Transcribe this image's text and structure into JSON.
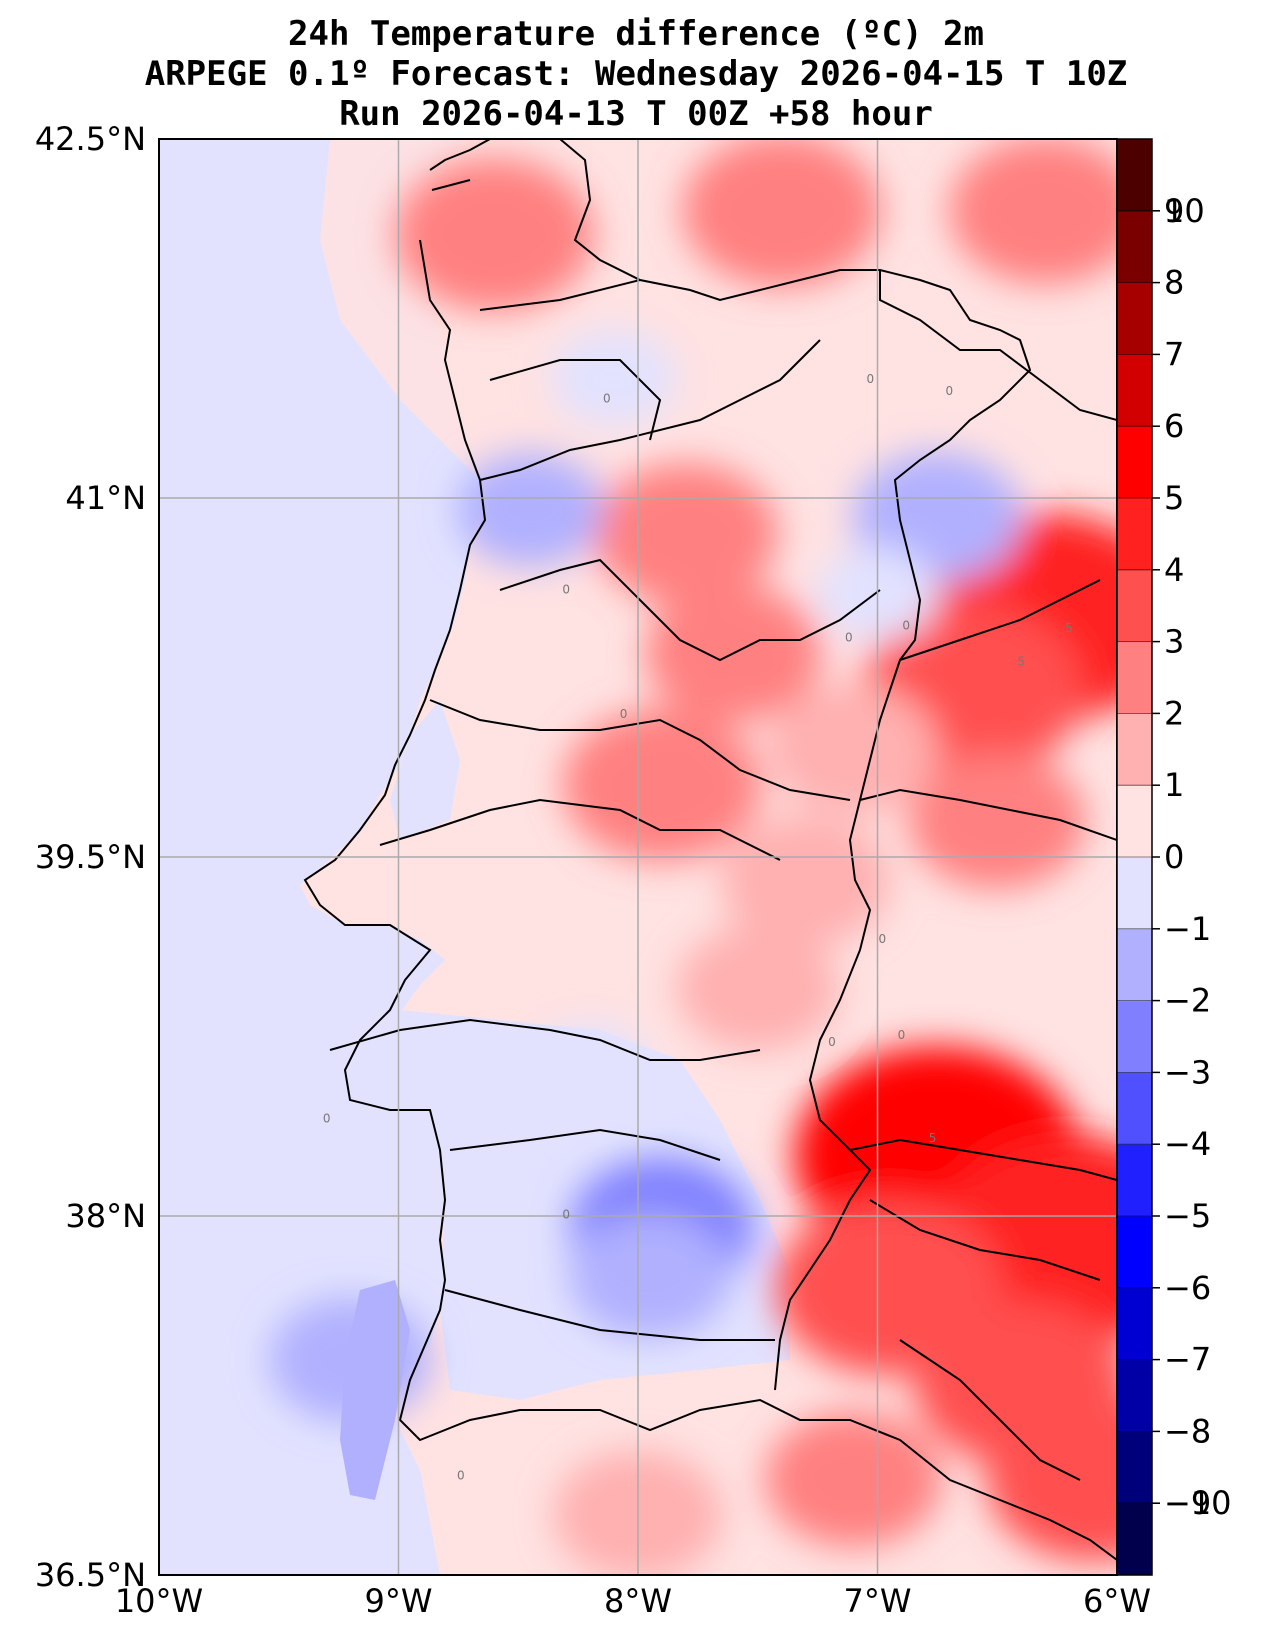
{
  "title": {
    "line1": "24h Temperature difference (ºC) 2m",
    "line2": "ARPEGE 0.1º Forecast: Wednesday 2026-04-15 T 10Z",
    "line3": "Run 2026-04-13 T 00Z +58 hour"
  },
  "map": {
    "lon_range": [
      -10,
      -6
    ],
    "lat_range": [
      36.5,
      42.5
    ],
    "lon_ticks": [
      "10°W",
      "9°W",
      "8°W",
      "7°W",
      "6°W"
    ],
    "lat_ticks": [
      "36.5°N",
      "38°N",
      "39.5°N",
      "41°N",
      "42.5°N"
    ],
    "grid": true
  },
  "colorbar": {
    "levels": [
      -10,
      -9,
      -8,
      -7,
      -6,
      -5,
      -4,
      -3,
      -2,
      -1,
      0,
      1,
      2,
      3,
      4,
      5,
      6,
      7,
      8,
      9,
      10
    ],
    "tick_labels": [
      "−10",
      "−9",
      "−8",
      "−7",
      "−6",
      "−5",
      "−4",
      "−3",
      "−2",
      "−1",
      "0",
      "1",
      "2",
      "3",
      "4",
      "5",
      "6",
      "7",
      "8",
      "9",
      "10"
    ],
    "colors": [
      "#00004c",
      "#00007a",
      "#0000a6",
      "#0000d2",
      "#0000ff",
      "#2020ff",
      "#5050ff",
      "#8080ff",
      "#b0b0ff",
      "#e2e2ff",
      "#ffe2e2",
      "#ffb0b0",
      "#ff8080",
      "#ff5050",
      "#ff2020",
      "#ff0000",
      "#d20000",
      "#a60000",
      "#7a0000",
      "#4c0000"
    ]
  },
  "contour_labels": [
    {
      "text": "0",
      "lon": -7.03,
      "lat": 41.48
    },
    {
      "text": "0",
      "lon": -6.7,
      "lat": 41.43
    },
    {
      "text": "0",
      "lon": -8.13,
      "lat": 41.4
    },
    {
      "text": "0",
      "lon": -8.3,
      "lat": 40.6
    },
    {
      "text": "0",
      "lon": -7.12,
      "lat": 40.4
    },
    {
      "text": "0",
      "lon": -6.88,
      "lat": 40.45
    },
    {
      "text": "0",
      "lon": -8.06,
      "lat": 40.08
    },
    {
      "text": "0",
      "lon": -6.98,
      "lat": 39.14
    },
    {
      "text": "0",
      "lon": -7.19,
      "lat": 38.71
    },
    {
      "text": "0",
      "lon": -6.9,
      "lat": 38.74
    },
    {
      "text": "0",
      "lon": -9.3,
      "lat": 38.39
    },
    {
      "text": "0",
      "lon": -8.3,
      "lat": 37.99
    },
    {
      "text": "0",
      "lon": -8.74,
      "lat": 36.9
    },
    {
      "text": "5",
      "lon": -6.2,
      "lat": 40.44
    },
    {
      "text": "5",
      "lon": -6.4,
      "lat": 40.3
    },
    {
      "text": "5",
      "lon": -6.77,
      "lat": 38.31
    }
  ],
  "field_blobs": [
    {
      "lon": -6.3,
      "lat": 40.5,
      "value": 4.6
    },
    {
      "lon": -6.6,
      "lat": 40.2,
      "value": 3.2
    },
    {
      "lon": -6.75,
      "lat": 38.25,
      "value": 5.0
    },
    {
      "lon": -6.5,
      "lat": 37.95,
      "value": 5.4
    },
    {
      "lon": -6.2,
      "lat": 37.9,
      "value": 4.6
    },
    {
      "lon": -6.95,
      "lat": 37.7,
      "value": 3.4
    },
    {
      "lon": -6.4,
      "lat": 37.3,
      "value": 3.0
    },
    {
      "lon": -6.1,
      "lat": 36.9,
      "value": 3.0
    },
    {
      "lon": -7.1,
      "lat": 36.9,
      "value": 2.0
    },
    {
      "lon": -8.6,
      "lat": 42.1,
      "value": 2.6
    },
    {
      "lon": -7.4,
      "lat": 42.2,
      "value": 2.6
    },
    {
      "lon": -6.3,
      "lat": 42.2,
      "value": 2.4
    },
    {
      "lon": -7.8,
      "lat": 40.85,
      "value": 2.2
    },
    {
      "lon": -7.6,
      "lat": 40.35,
      "value": 2.0
    },
    {
      "lon": -7.9,
      "lat": 39.8,
      "value": 2.6
    },
    {
      "lon": -7.1,
      "lat": 39.95,
      "value": 1.8
    },
    {
      "lon": -6.5,
      "lat": 39.65,
      "value": 2.0
    },
    {
      "lon": -7.3,
      "lat": 39.4,
      "value": 1.8
    },
    {
      "lon": -7.5,
      "lat": 38.95,
      "value": 1.6
    },
    {
      "lon": -8.0,
      "lat": 36.75,
      "value": 1.8
    },
    {
      "lon": -6.75,
      "lat": 40.92,
      "value": -1.8
    },
    {
      "lon": -8.45,
      "lat": 40.95,
      "value": -1.2
    },
    {
      "lon": -7.9,
      "lat": 37.95,
      "value": -2.2
    },
    {
      "lon": -7.95,
      "lat": 37.75,
      "value": -1.6
    },
    {
      "lon": -9.2,
      "lat": 37.4,
      "value": -1.6
    },
    {
      "lon": -8.1,
      "lat": 41.5,
      "value": -0.6
    },
    {
      "lon": -7.0,
      "lat": 40.6,
      "value": -0.5
    },
    {
      "lon": -8.2,
      "lat": 38.6,
      "value": -0.5
    }
  ]
}
